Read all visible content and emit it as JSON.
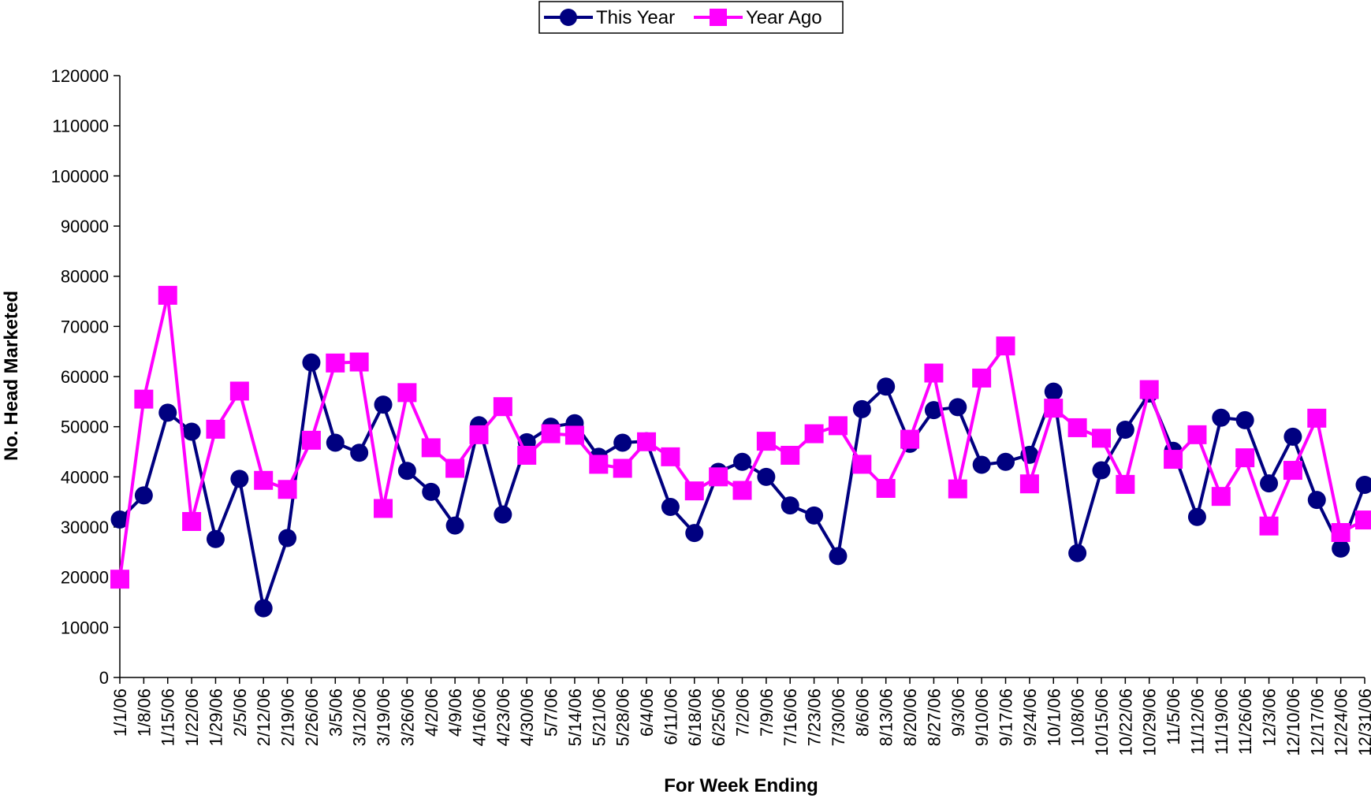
{
  "chart_data": {
    "type": "line",
    "title": "",
    "xlabel": "For Week Ending",
    "ylabel": "No. Head Marketed",
    "ylim": [
      0,
      120000
    ],
    "yticks": [
      0,
      10000,
      20000,
      30000,
      40000,
      50000,
      60000,
      70000,
      80000,
      90000,
      100000,
      110000,
      120000
    ],
    "grid": false,
    "legend_position": "top-center",
    "categories": [
      "1/1/06",
      "1/8/06",
      "1/15/06",
      "1/22/06",
      "1/29/06",
      "2/5/06",
      "2/12/06",
      "2/19/06",
      "2/26/06",
      "3/5/06",
      "3/12/06",
      "3/19/06",
      "3/26/06",
      "4/2/06",
      "4/9/06",
      "4/16/06",
      "4/23/06",
      "4/30/06",
      "5/7/06",
      "5/14/06",
      "5/21/06",
      "5/28/06",
      "6/4/06",
      "6/11/06",
      "6/18/06",
      "6/25/06",
      "7/2/06",
      "7/9/06",
      "7/16/06",
      "7/23/06",
      "7/30/06",
      "8/6/06",
      "8/13/06",
      "8/20/06",
      "8/27/06",
      "9/3/06",
      "9/10/06",
      "9/17/06",
      "9/24/06",
      "10/1/06",
      "10/8/06",
      "10/15/06",
      "10/22/06",
      "10/29/06",
      "11/5/06",
      "11/12/06",
      "11/19/06",
      "11/26/06",
      "12/3/06",
      "12/10/06",
      "12/17/06",
      "12/24/06",
      "12/31/06"
    ],
    "series": [
      {
        "name": "This Year",
        "color": "#000080",
        "marker": "circle",
        "values": [
          31500,
          36300,
          52800,
          49000,
          27600,
          39600,
          13800,
          27800,
          62800,
          46800,
          44800,
          54400,
          41200,
          37000,
          30300,
          50300,
          32500,
          46900,
          50000,
          50700,
          44000,
          46800,
          47100,
          34000,
          28800,
          41000,
          43000,
          40000,
          34300,
          32300,
          24200,
          53500,
          58000,
          46600,
          53300,
          53900,
          42400,
          43000,
          44400,
          57000,
          24800,
          41300,
          49400,
          56600,
          45200,
          32000,
          51800,
          51300,
          38700,
          48000,
          35400,
          25700,
          38400
        ]
      },
      {
        "name": "Year Ago",
        "color": "#FF00FF",
        "marker": "square",
        "values": [
          19600,
          55500,
          76200,
          31100,
          49500,
          57100,
          39300,
          37500,
          47300,
          62700,
          62900,
          33700,
          56800,
          45800,
          41700,
          48400,
          54000,
          44300,
          48600,
          48300,
          42500,
          41700,
          47000,
          44000,
          37200,
          40000,
          37300,
          47100,
          44300,
          48600,
          50200,
          42500,
          37700,
          47500,
          60700,
          37600,
          59700,
          66100,
          38600,
          53700,
          49800,
          47700,
          38500,
          57400,
          43500,
          48400,
          36100,
          43800,
          30200,
          41300,
          51700,
          28900,
          31400
        ]
      }
    ]
  }
}
